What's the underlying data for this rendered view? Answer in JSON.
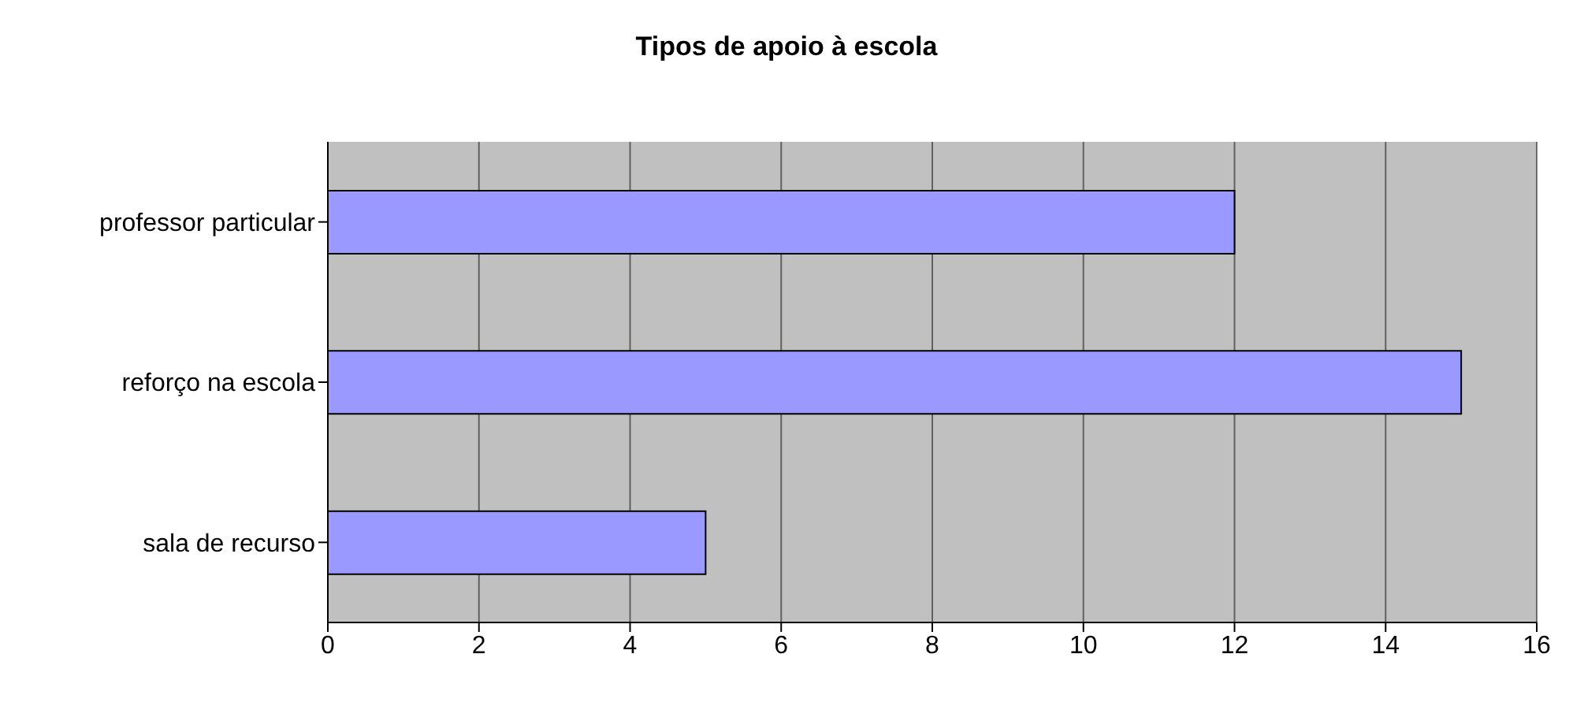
{
  "chart_data": {
    "type": "bar",
    "orientation": "horizontal",
    "title": "Tipos de apoio à escola",
    "categories": [
      "professor particular",
      "reforço na escola",
      "sala de recurso"
    ],
    "values": [
      12,
      15,
      5
    ],
    "color": "#9999ff",
    "xlim": [
      0,
      16
    ],
    "xticks": [
      0,
      2,
      4,
      6,
      8,
      10,
      12,
      14,
      16
    ],
    "grid": "x"
  }
}
